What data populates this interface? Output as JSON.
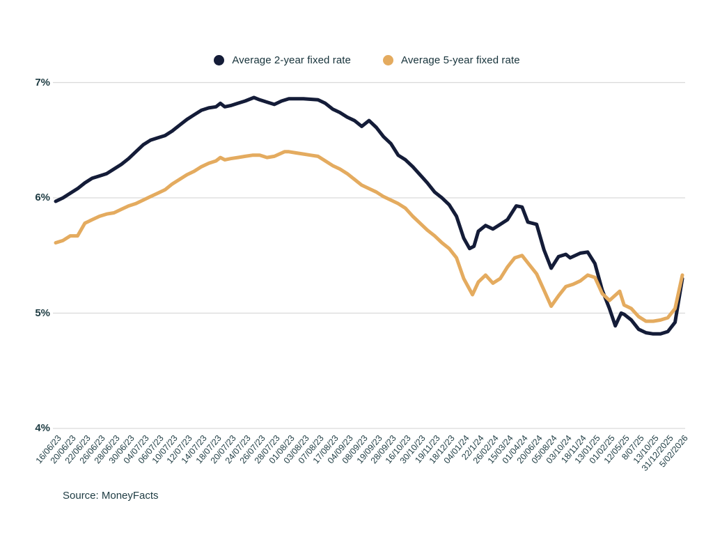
{
  "source": "Source: MoneyFacts",
  "colors": {
    "series_2yr": "#141c38",
    "series_5yr": "#e4ab5f",
    "grid": "#d9d9d9",
    "axis_text": "#1d3b42",
    "background": "#ffffff"
  },
  "chart_data": {
    "type": "line",
    "title": "",
    "xlabel": "",
    "ylabel": "",
    "ylim": [
      4,
      7
    ],
    "grid": "horizontal gridlines at each y tick",
    "legend_position": "top-center",
    "y_ticks": [
      {
        "label": "7%",
        "value": 7
      },
      {
        "label": "6%",
        "value": 6
      },
      {
        "label": "5%",
        "value": 5
      },
      {
        "label": "4%",
        "value": 4
      }
    ],
    "categories": [
      "16/06/23",
      "20/06/23",
      "22/06/23",
      "26/06/23",
      "28/06/23",
      "30/06/23",
      "04/07/23",
      "06/07/23",
      "10/07/23",
      "12/07/23",
      "14/07/23",
      "18/07/23",
      "20/07/23",
      "24/07/23",
      "26/07/23",
      "28/07/23",
      "01/08/23",
      "03/08/23",
      "07/08/23",
      "17/08/23",
      "04/09/23",
      "08/09/23",
      "19/09/23",
      "28/09/23",
      "16/10/23",
      "30/10/23",
      "19/11/23",
      "18/12/23",
      "04/01/24",
      "22/1/24",
      "26/02/24",
      "15/03/24",
      "01/04/24",
      "20/06/24",
      "05/08/24",
      "03/10/24",
      "18/11/24",
      "13/01/25",
      "01/02/25",
      "12/05/25",
      "8/07/25",
      "13/10/25",
      "31/12/2025",
      "5/02/2026"
    ],
    "series": [
      {
        "name": "Average 2-year fixed rate",
        "color": "#141c38",
        "points": [
          [
            0,
            5.97
          ],
          [
            0.5,
            6.0
          ],
          [
            1,
            6.04
          ],
          [
            1.5,
            6.08
          ],
          [
            2,
            6.13
          ],
          [
            2.5,
            6.17
          ],
          [
            3,
            6.19
          ],
          [
            3.5,
            6.21
          ],
          [
            4,
            6.25
          ],
          [
            4.5,
            6.29
          ],
          [
            5,
            6.34
          ],
          [
            5.5,
            6.4
          ],
          [
            6,
            6.46
          ],
          [
            6.5,
            6.5
          ],
          [
            7,
            6.52
          ],
          [
            7.5,
            6.54
          ],
          [
            8,
            6.58
          ],
          [
            8.5,
            6.63
          ],
          [
            9,
            6.68
          ],
          [
            9.5,
            6.72
          ],
          [
            10,
            6.76
          ],
          [
            10.5,
            6.78
          ],
          [
            11,
            6.79
          ],
          [
            11.3,
            6.82
          ],
          [
            11.6,
            6.79
          ],
          [
            12,
            6.8
          ],
          [
            12.5,
            6.82
          ],
          [
            13,
            6.84
          ],
          [
            13.6,
            6.87
          ],
          [
            14,
            6.85
          ],
          [
            14.5,
            6.83
          ],
          [
            15,
            6.81
          ],
          [
            15.5,
            6.84
          ],
          [
            16,
            6.86
          ],
          [
            17,
            6.86
          ],
          [
            18,
            6.85
          ],
          [
            18.5,
            6.82
          ],
          [
            19,
            6.77
          ],
          [
            19.5,
            6.74
          ],
          [
            20,
            6.7
          ],
          [
            20.5,
            6.67
          ],
          [
            21,
            6.62
          ],
          [
            21.5,
            6.67
          ],
          [
            22,
            6.61
          ],
          [
            22.5,
            6.53
          ],
          [
            23,
            6.47
          ],
          [
            23.5,
            6.37
          ],
          [
            24,
            6.33
          ],
          [
            24.5,
            6.27
          ],
          [
            25,
            6.2
          ],
          [
            25.5,
            6.13
          ],
          [
            26,
            6.05
          ],
          [
            26.5,
            6.0
          ],
          [
            27,
            5.94
          ],
          [
            27.5,
            5.84
          ],
          [
            28,
            5.65
          ],
          [
            28.4,
            5.56
          ],
          [
            28.7,
            5.58
          ],
          [
            29,
            5.71
          ],
          [
            29.5,
            5.76
          ],
          [
            30,
            5.73
          ],
          [
            30.5,
            5.77
          ],
          [
            31,
            5.81
          ],
          [
            31.6,
            5.93
          ],
          [
            32,
            5.92
          ],
          [
            32.4,
            5.79
          ],
          [
            33,
            5.77
          ],
          [
            33.5,
            5.55
          ],
          [
            34,
            5.39
          ],
          [
            34.5,
            5.49
          ],
          [
            35,
            5.51
          ],
          [
            35.3,
            5.48
          ],
          [
            36,
            5.52
          ],
          [
            36.5,
            5.53
          ],
          [
            37,
            5.43
          ],
          [
            37.5,
            5.2
          ],
          [
            38,
            5.04
          ],
          [
            38.4,
            4.89
          ],
          [
            38.8,
            5.0
          ],
          [
            39,
            4.99
          ],
          [
            39.5,
            4.94
          ],
          [
            40,
            4.86
          ],
          [
            40.5,
            4.83
          ],
          [
            41,
            4.82
          ],
          [
            41.5,
            4.82
          ],
          [
            42,
            4.84
          ],
          [
            42.5,
            4.92
          ],
          [
            43,
            5.3
          ]
        ]
      },
      {
        "name": "Average 5-year fixed rate",
        "color": "#e4ab5f",
        "points": [
          [
            0,
            5.61
          ],
          [
            0.5,
            5.63
          ],
          [
            1,
            5.67
          ],
          [
            1.5,
            5.67
          ],
          [
            2,
            5.78
          ],
          [
            2.5,
            5.81
          ],
          [
            3,
            5.84
          ],
          [
            3.5,
            5.86
          ],
          [
            4,
            5.87
          ],
          [
            4.5,
            5.9
          ],
          [
            5,
            5.93
          ],
          [
            5.5,
            5.95
          ],
          [
            6,
            5.98
          ],
          [
            6.5,
            6.01
          ],
          [
            7,
            6.04
          ],
          [
            7.5,
            6.07
          ],
          [
            8,
            6.12
          ],
          [
            8.5,
            6.16
          ],
          [
            9,
            6.2
          ],
          [
            9.5,
            6.23
          ],
          [
            10,
            6.27
          ],
          [
            10.5,
            6.3
          ],
          [
            11,
            6.32
          ],
          [
            11.3,
            6.35
          ],
          [
            11.6,
            6.33
          ],
          [
            12,
            6.34
          ],
          [
            12.5,
            6.35
          ],
          [
            13,
            6.36
          ],
          [
            13.5,
            6.37
          ],
          [
            14,
            6.37
          ],
          [
            14.5,
            6.35
          ],
          [
            15,
            6.36
          ],
          [
            15.7,
            6.4
          ],
          [
            16,
            6.4
          ],
          [
            16.5,
            6.39
          ],
          [
            17,
            6.38
          ],
          [
            17.5,
            6.37
          ],
          [
            18,
            6.36
          ],
          [
            18.5,
            6.32
          ],
          [
            19,
            6.28
          ],
          [
            19.5,
            6.25
          ],
          [
            20,
            6.21
          ],
          [
            20.5,
            6.16
          ],
          [
            21,
            6.11
          ],
          [
            21.5,
            6.08
          ],
          [
            22,
            6.05
          ],
          [
            22.5,
            6.01
          ],
          [
            23,
            5.98
          ],
          [
            23.5,
            5.95
          ],
          [
            24,
            5.91
          ],
          [
            24.5,
            5.84
          ],
          [
            25,
            5.78
          ],
          [
            25.5,
            5.72
          ],
          [
            26,
            5.67
          ],
          [
            26.5,
            5.61
          ],
          [
            27,
            5.56
          ],
          [
            27.5,
            5.48
          ],
          [
            28,
            5.3
          ],
          [
            28.6,
            5.16
          ],
          [
            29,
            5.27
          ],
          [
            29.5,
            5.33
          ],
          [
            30,
            5.26
          ],
          [
            30.5,
            5.3
          ],
          [
            31,
            5.4
          ],
          [
            31.5,
            5.48
          ],
          [
            32,
            5.5
          ],
          [
            32.5,
            5.42
          ],
          [
            33,
            5.34
          ],
          [
            33.5,
            5.2
          ],
          [
            34,
            5.06
          ],
          [
            34.5,
            5.15
          ],
          [
            35,
            5.23
          ],
          [
            35.5,
            5.25
          ],
          [
            36,
            5.28
          ],
          [
            36.5,
            5.33
          ],
          [
            37,
            5.31
          ],
          [
            37.5,
            5.17
          ],
          [
            38,
            5.11
          ],
          [
            38.7,
            5.19
          ],
          [
            39,
            5.07
          ],
          [
            39.5,
            5.04
          ],
          [
            40,
            4.97
          ],
          [
            40.5,
            4.93
          ],
          [
            41,
            4.93
          ],
          [
            41.5,
            4.94
          ],
          [
            42,
            4.96
          ],
          [
            42.5,
            5.04
          ],
          [
            43,
            5.33
          ]
        ]
      }
    ]
  }
}
